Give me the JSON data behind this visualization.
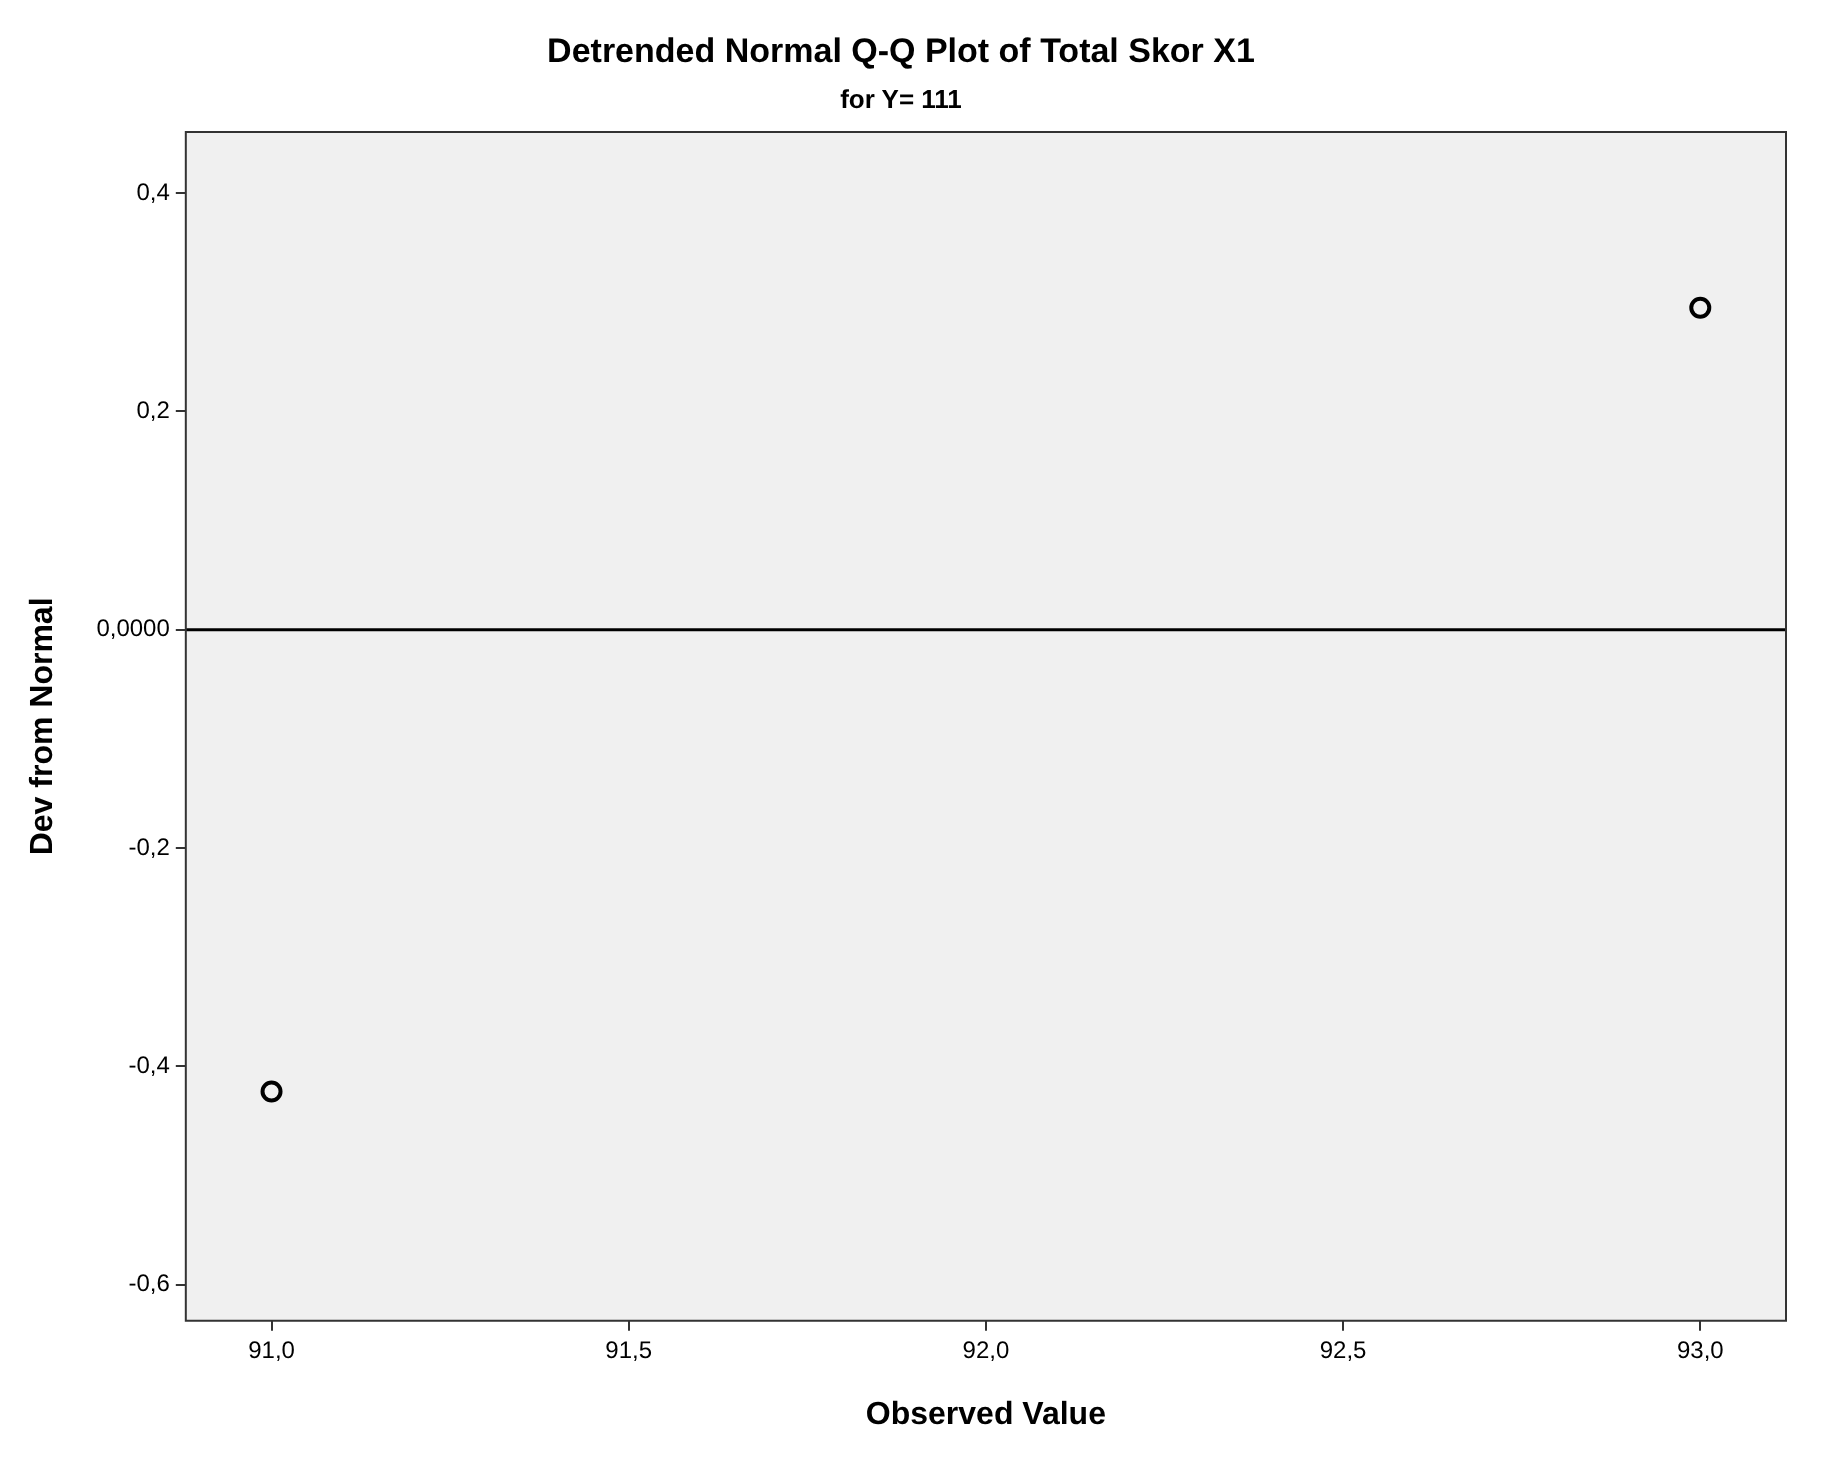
{
  "chart_data": {
    "type": "scatter",
    "title": "Detrended Normal Q-Q Plot of Total Skor X1",
    "subtitle": "for Y= 111",
    "xlabel": "Observed Value",
    "ylabel": "Dev from Normal",
    "series": [
      {
        "color": "#000000",
        "x": [
          91,
          93
        ],
        "values": [
          -0.423,
          0.295
        ]
      }
    ],
    "marker": "circle",
    "legend": false,
    "grid": false,
    "xlim": [
      90.88,
      93.12
    ],
    "xticks": [
      {
        "value": 91,
        "label": "91,0"
      },
      {
        "value": 91.5,
        "label": "91,5"
      },
      {
        "value": 92,
        "label": "92,0"
      },
      {
        "value": 92.5,
        "label": "92,5"
      },
      {
        "value": 93,
        "label": "93,0"
      }
    ],
    "ylim": [
      -0.633,
      0.456
    ],
    "yticks": [
      {
        "value": -0.6,
        "label": "-0,6"
      },
      {
        "value": -0.4,
        "label": "-0,4"
      },
      {
        "value": -0.2,
        "label": "-0,2"
      },
      {
        "value": 0,
        "label": "0,0000"
      },
      {
        "value": 0.2,
        "label": "0,2"
      },
      {
        "value": 0.4,
        "label": "0,4"
      }
    ],
    "ref_lines": [
      {
        "axis": "y",
        "value": 0,
        "color": "#000000"
      }
    ]
  }
}
